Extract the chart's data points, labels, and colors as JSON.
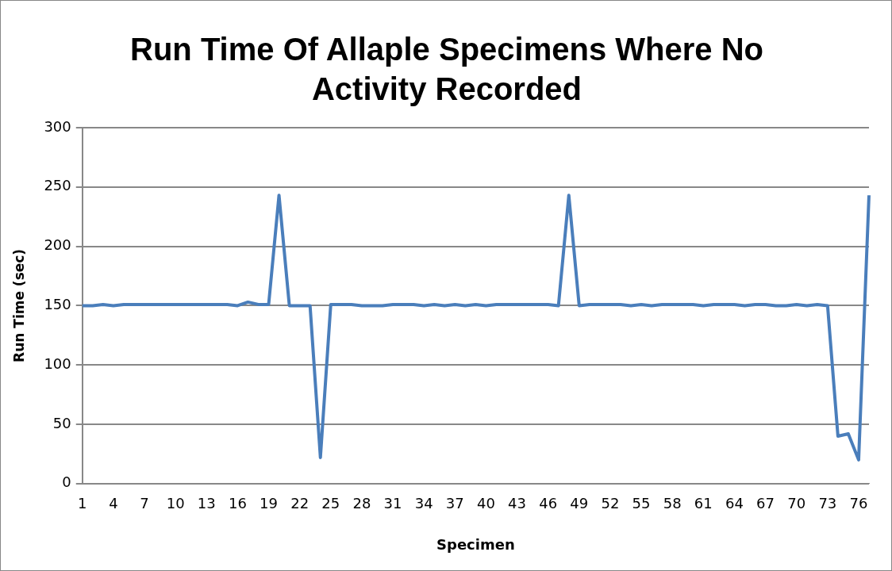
{
  "chart_data": {
    "type": "line",
    "title": "Run Time Of Allaple Specimens Where No Activity Recorded",
    "xlabel": "Specimen",
    "ylabel": "Run Time (sec)",
    "categories": [
      "1",
      null,
      null,
      "4",
      null,
      null,
      "7",
      null,
      null,
      "10",
      null,
      null,
      "13",
      null,
      null,
      "16",
      null,
      null,
      "19",
      null,
      null,
      "22",
      null,
      null,
      "25",
      null,
      null,
      "28",
      null,
      null,
      "31",
      null,
      null,
      "34",
      null,
      null,
      "37",
      null,
      null,
      "40",
      null,
      null,
      "43",
      null,
      null,
      "46",
      null,
      null,
      "49",
      null,
      null,
      "52",
      null,
      null,
      "55",
      null,
      null,
      "58",
      null,
      null,
      "61",
      null,
      null,
      "64",
      null,
      null,
      "67",
      null,
      null,
      "70",
      null,
      null,
      "73",
      null,
      null,
      "76",
      null
    ],
    "series": [
      {
        "color": "#4a7ebb",
        "values": [
          150,
          150,
          151,
          150,
          151,
          151,
          151,
          151,
          151,
          151,
          151,
          151,
          151,
          151,
          151,
          150,
          153,
          151,
          151,
          243,
          150,
          150,
          150,
          22,
          151,
          151,
          151,
          150,
          150,
          150,
          151,
          151,
          151,
          150,
          151,
          150,
          151,
          150,
          151,
          150,
          151,
          151,
          151,
          151,
          151,
          151,
          150,
          243,
          150,
          151,
          151,
          151,
          151,
          150,
          151,
          150,
          151,
          151,
          151,
          151,
          150,
          151,
          151,
          151,
          150,
          151,
          151,
          150,
          150,
          151,
          150,
          151,
          150,
          40,
          42,
          20,
          243
        ]
      }
    ],
    "ylim": [
      0,
      300
    ],
    "yticks": [
      0,
      50,
      100,
      150,
      200,
      250,
      300
    ],
    "grid": "y",
    "legend": false,
    "marker": "none",
    "line_style": "solid"
  }
}
